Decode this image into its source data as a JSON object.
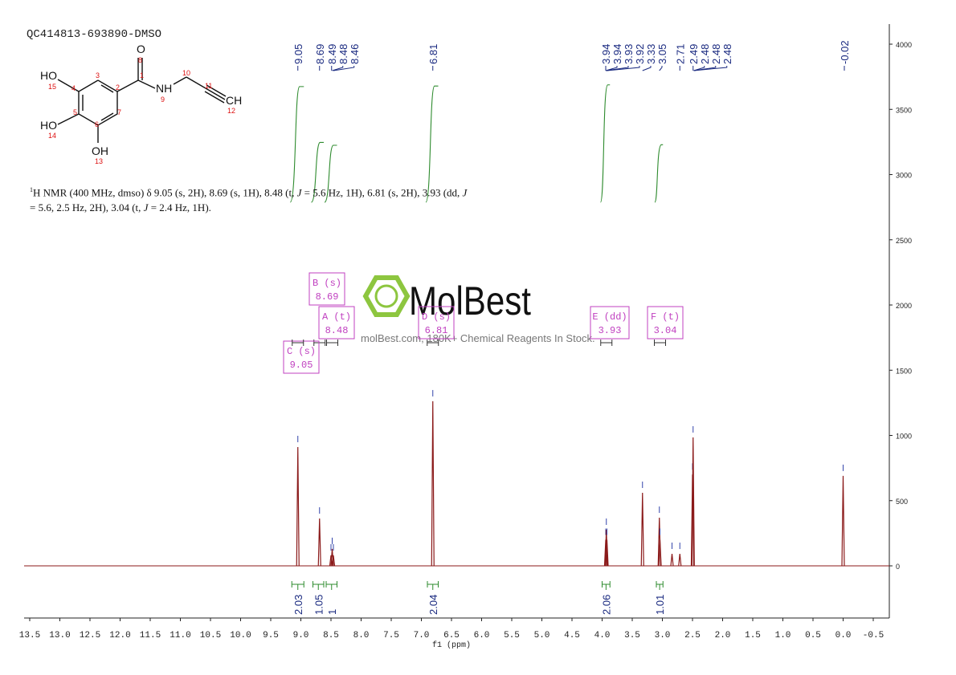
{
  "chart_data": {
    "type": "nmr",
    "title": "QC414813-693890-DMSO",
    "xlabel": "f1 (ppm)",
    "xlim": [
      13.5,
      -0.5
    ],
    "xticks": [
      13.5,
      {
        "value": 13,
        "label": "13.0"
      },
      12.5,
      {
        "value": 12,
        "label": "12.0"
      },
      11.5,
      {
        "value": 11,
        "label": "11.0"
      },
      10.5,
      {
        "value": 10,
        "label": "10.0"
      },
      9.5,
      {
        "value": 9,
        "label": "9.0"
      },
      8.5,
      {
        "value": 8,
        "label": "8.0"
      },
      7.5,
      {
        "value": 7,
        "label": "7.0"
      },
      6.5,
      {
        "value": 6,
        "label": "6.0"
      },
      5.5,
      {
        "value": 5,
        "label": "5.0"
      },
      4.5,
      {
        "value": 4,
        "label": "4.0"
      },
      3.5,
      {
        "value": 3,
        "label": "3.0"
      },
      2.5,
      {
        "value": 2,
        "label": "2.0"
      },
      1.5,
      {
        "value": 1,
        "label": "1.0"
      },
      0.5,
      {
        "value": 0,
        "label": "0.0"
      },
      -0.5
    ],
    "ylim": [
      -400,
      4154
    ],
    "yticks": [
      0,
      500,
      1000,
      1500,
      2000,
      2500,
      3000,
      3500,
      4000
    ],
    "color": "#8b1a1a",
    "peaks": {
      "x": [
        9.05,
        8.69,
        8.5,
        8.48,
        8.46,
        6.81,
        3.94,
        3.93,
        3.92,
        3.33,
        3.05,
        3.04,
        2.84,
        2.71,
        2.5,
        2.49,
        0.0
      ],
      "values": [
        911,
        363,
        80,
        130,
        80,
        1262,
        200,
        277,
        200,
        560,
        369,
        200,
        92,
        92,
        700,
        985,
        690
      ]
    },
    "peak_labels": [
      9.05,
      8.69,
      8.49,
      8.48,
      8.46,
      6.81,
      3.94,
      3.94,
      3.93,
      3.92,
      3.33,
      3.05,
      2.71,
      2.49,
      2.48,
      2.48,
      2.48,
      -0.02
    ],
    "integrals": [
      {
        "from": 9.15,
        "to": 8.95,
        "value": 2.03
      },
      {
        "from": 8.8,
        "to": 8.62,
        "value": 1.05
      },
      {
        "from": 8.58,
        "to": 8.4,
        "value": 1.0
      },
      {
        "from": 6.9,
        "to": 6.72,
        "value": 2.04
      },
      {
        "from": 4.0,
        "to": 3.87,
        "value": 2.06
      },
      {
        "from": 3.1,
        "to": 2.99,
        "value": 1.01
      }
    ],
    "multiplets": [
      {
        "name": "B (s)",
        "shift": 8.69
      },
      {
        "name": "A (t)",
        "shift": 8.48
      },
      {
        "name": "C (s)",
        "shift": 9.05
      },
      {
        "name": "D (s)",
        "shift": 6.81
      },
      {
        "name": "E (dd)",
        "shift": 3.93
      },
      {
        "name": "F (t)",
        "shift": 3.04
      }
    ],
    "description": [
      [
        "1",
        "H NMR (400 MHz, dmso) δ 9.05 (s, 2H), 8.69 (s, 1H), 8.48 (t, ",
        "J",
        " = 5.6 Hz, 1H), 6.81 (s, 2H), 3.93 (dd, ",
        "J"
      ],
      [
        "= 5.6, 2.5 Hz, 2H), 3.04 (t, ",
        "J",
        " = 2.4 Hz, 1H)."
      ]
    ],
    "structure": {
      "atoms": [
        "HO",
        "O",
        "NH",
        "CH",
        "HO",
        "OH"
      ],
      "numbers": [
        "15",
        "4",
        "3",
        "2",
        "1",
        "8",
        "10",
        "11",
        "9",
        "12",
        "7",
        "5",
        "6",
        "14",
        "13"
      ]
    },
    "watermark": {
      "logo": "MolBest",
      "text": "molBest.com, 180K+ Chemical Reagents In Stock."
    }
  }
}
